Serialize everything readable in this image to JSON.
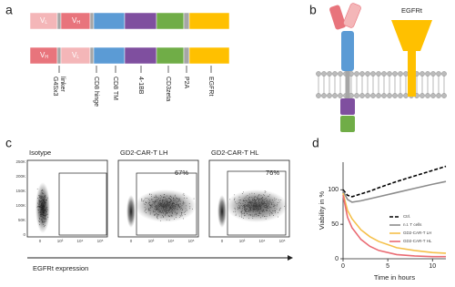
{
  "panel_letters": [
    "a",
    "b",
    "c",
    "d"
  ],
  "construct": {
    "row1": [
      {
        "text": "V",
        "sub": "L"
      },
      {
        "text": "V",
        "sub": "H"
      }
    ],
    "row2": [
      {
        "text": "V",
        "sub": "H"
      },
      {
        "text": "V",
        "sub": "L"
      }
    ],
    "labels": [
      [
        "G4Sx3",
        "linker"
      ],
      [
        "CD8 hinge"
      ],
      [
        "CD8 TM"
      ],
      [
        "4-1BB"
      ],
      [
        "CD3zeta"
      ],
      [
        "P2A"
      ],
      [
        "EGFRt"
      ]
    ]
  },
  "receptor": {
    "egfrt_label": "EGFRt"
  },
  "flow": {
    "plots": [
      {
        "title": "Isotype"
      },
      {
        "title": "GD2-CAR-T LH",
        "percent": "67%"
      },
      {
        "title": "GD2-CAR-T HL",
        "percent": "76%"
      }
    ],
    "yticks": [
      "0",
      "50K",
      "100K",
      "150K",
      "200K",
      "250K"
    ],
    "xticks": [
      "0",
      "10³",
      "10⁴",
      "10⁵"
    ],
    "x_label": "EGFRt expression"
  },
  "chart_data": {
    "type": "line",
    "x": [
      0,
      0.5,
      1,
      2,
      3,
      4,
      6,
      8,
      10,
      11.5
    ],
    "series": [
      {
        "name": "Ctrl.",
        "color": "#000000",
        "dashed": true,
        "values": [
          100,
          92,
          90,
          94,
          98,
          103,
          112,
          120,
          128,
          134
        ]
      },
      {
        "name": "n.t. T cells",
        "color": "#8c8c8c",
        "values": [
          98,
          86,
          82,
          84,
          87,
          90,
          96,
          102,
          108,
          112
        ]
      },
      {
        "name": "GD2-CAR-T LH",
        "color": "#f5c04a",
        "values": [
          95,
          70,
          58,
          42,
          32,
          25,
          16,
          12,
          9,
          8
        ]
      },
      {
        "name": "GD2-CAR-T HL",
        "color": "#ea6b73",
        "values": [
          92,
          60,
          45,
          28,
          18,
          12,
          6,
          4,
          3,
          3
        ]
      }
    ],
    "xlim": [
      0,
      11.5
    ],
    "ylim": [
      0,
      140
    ],
    "xticks": [
      0,
      5,
      10
    ],
    "yticks": [
      0,
      50,
      100
    ],
    "x_label": "Time in hours",
    "y_label": "Viability in %"
  }
}
